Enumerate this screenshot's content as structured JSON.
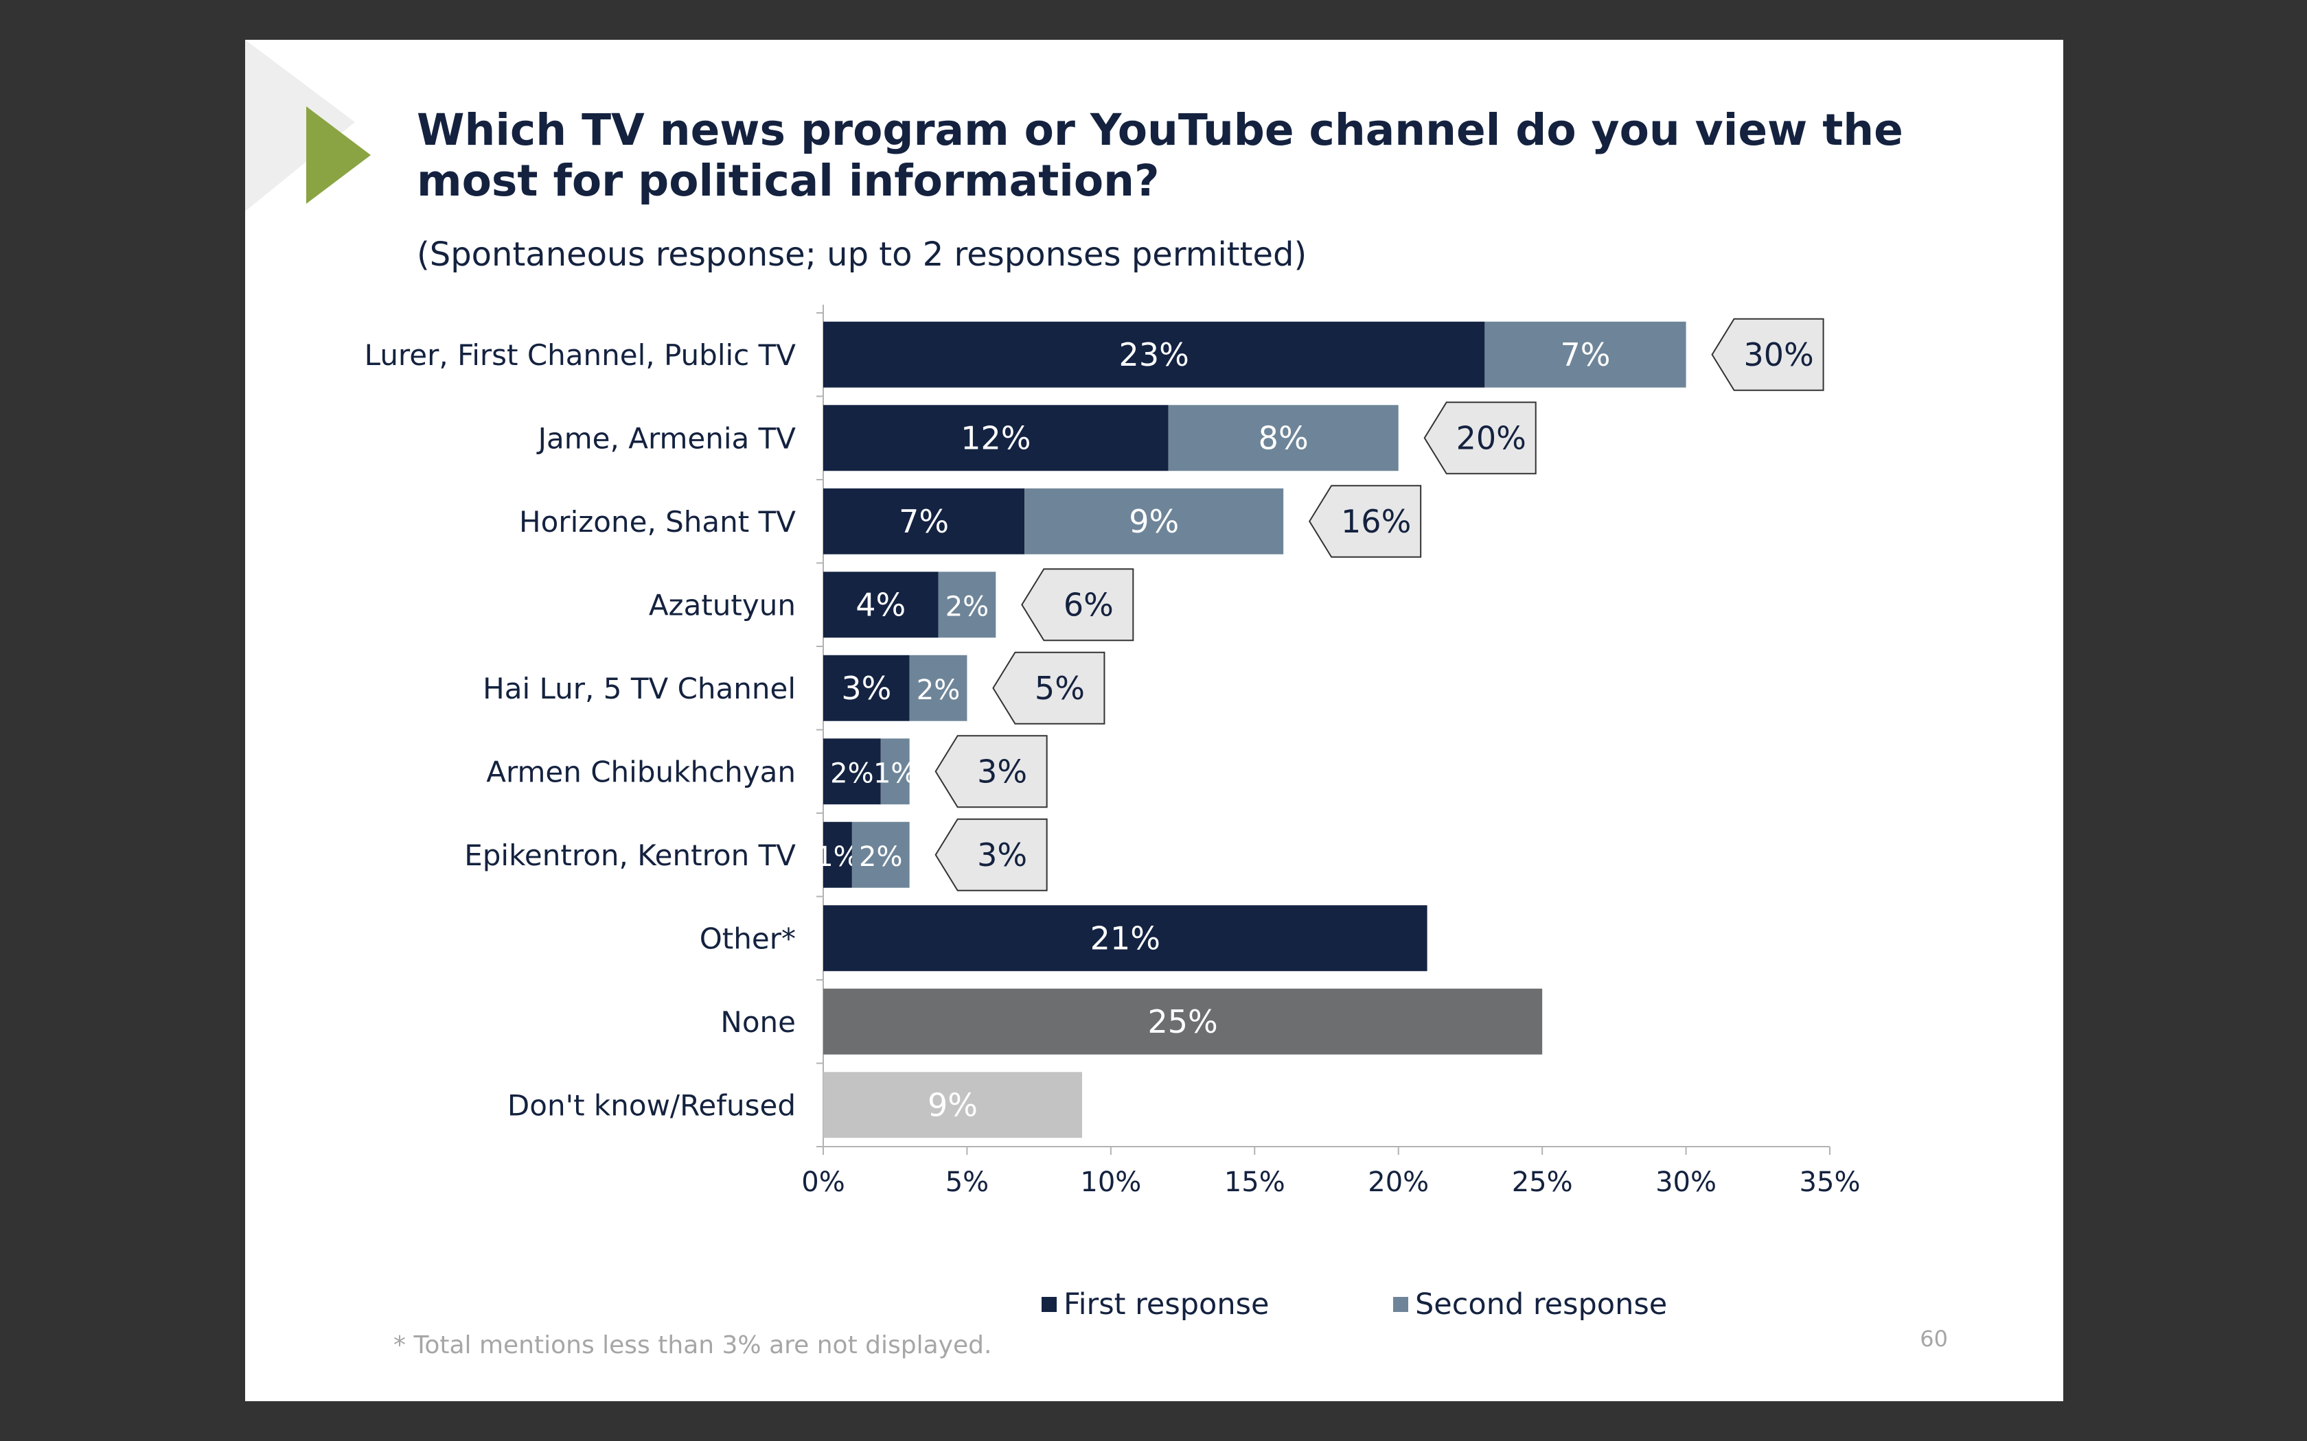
{
  "slide": {
    "title": "Which TV news program or YouTube channel do you view the most for political information?",
    "subtitle": "(Spontaneous response; up to 2 responses permitted)",
    "footnote": "* Total mentions less than 3% are not displayed.",
    "page_number": "60"
  },
  "colors": {
    "first": "#142342",
    "second": "#6e8599",
    "none": "#6d6e70",
    "dont_know": "#c3c3c3",
    "total_box_fill": "#e7e7e8",
    "accent_arrow": "#8aa443"
  },
  "chart_data": {
    "type": "bar",
    "orientation": "horizontal",
    "stacked": true,
    "categories": [
      "Lurer, First Channel, Public TV",
      "Jame, Armenia TV",
      "Horizone, Shant TV",
      "Azatutyun",
      "Hai Lur, 5 TV Channel",
      "Armen Chibukhchyan",
      "Epikentron, Kentron TV",
      "Other*",
      "None",
      "Don't know/Refused"
    ],
    "series": [
      {
        "name": "First response",
        "values": [
          23,
          12,
          7,
          4,
          3,
          2,
          1,
          21,
          null,
          null
        ],
        "labels": [
          "23%",
          "12%",
          "7%",
          "4%",
          "3%",
          "2%",
          "1%",
          "21%",
          "",
          ""
        ]
      },
      {
        "name": "Second response",
        "values": [
          7,
          8,
          9,
          2,
          2,
          1,
          2,
          null,
          null,
          null
        ],
        "labels": [
          "7%",
          "8%",
          "9%",
          "2%",
          "2%",
          "1%",
          "2%",
          "",
          "",
          ""
        ]
      }
    ],
    "single_values": [
      {
        "category": "None",
        "value": 25,
        "label": "25%"
      },
      {
        "category": "Don't know/Refused",
        "value": 9,
        "label": "9%"
      }
    ],
    "totals": [
      30,
      20,
      16,
      6,
      5,
      3,
      3,
      null,
      null,
      null
    ],
    "total_labels": [
      "30%",
      "20%",
      "16%",
      "6%",
      "5%",
      "3%",
      "3%",
      "",
      "",
      ""
    ],
    "xlim": [
      0,
      35
    ],
    "xticks": [
      "0%",
      "5%",
      "10%",
      "15%",
      "20%",
      "25%",
      "30%",
      "35%"
    ],
    "legend": [
      "First response",
      "Second response"
    ],
    "legend_position": "bottom",
    "grid": false
  }
}
